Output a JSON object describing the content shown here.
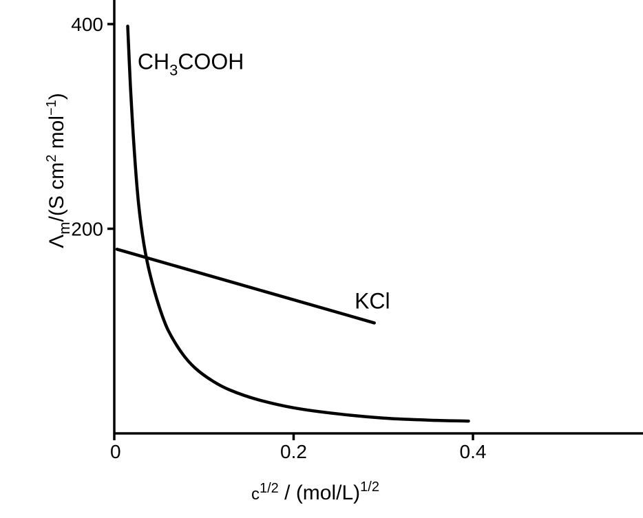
{
  "chart_data": {
    "type": "line",
    "title": "",
    "xlabel": "c¹ᐟ² / (mol/L)¹ᐟ²",
    "xlabel_parts": {
      "base": "c",
      "sup1": "1/2",
      "mid": " / (mol/L)",
      "sup2": "1/2"
    },
    "ylabel": "Λm /(S cm² mol⁻¹)",
    "ylabel_parts": {
      "sym": "Λ",
      "sub": "m",
      "pre": "/(S cm",
      "sup1": "2",
      "mid": " mol",
      "sup2": "−1",
      "post": ")"
    },
    "xlim": [
      0,
      0.5
    ],
    "ylim": [
      0,
      400
    ],
    "x_ticks": [
      {
        "value": 0,
        "label": "0"
      },
      {
        "value": 0.2,
        "label": "0.2"
      },
      {
        "value": 0.4,
        "label": "0.4"
      }
    ],
    "y_ticks": [
      {
        "value": 200,
        "label": "200"
      },
      {
        "value": 400,
        "label": "400"
      }
    ],
    "grid": false,
    "series": [
      {
        "name": "CH3COOH",
        "label_parts": {
          "pre": "CH",
          "sub": "3",
          "post": "COOH"
        },
        "label_at": {
          "x": 0.026,
          "y": 356
        },
        "x": [
          0.015,
          0.018,
          0.022,
          0.027,
          0.033,
          0.04,
          0.05,
          0.06,
          0.075,
          0.09,
          0.11,
          0.13,
          0.16,
          0.2,
          0.25,
          0.3,
          0.35,
          0.395
        ],
        "y": [
          398,
          340,
          280,
          225,
          185,
          155,
          124,
          101,
          79,
          64,
          51,
          42,
          33,
          25,
          19,
          15,
          13,
          12
        ]
      },
      {
        "name": "KCl",
        "label_parts": {
          "pre": "KCl",
          "sub": "",
          "post": ""
        },
        "label_at": {
          "x": 0.268,
          "y": 122
        },
        "x": [
          0.003,
          0.29
        ],
        "y": [
          180,
          108
        ]
      }
    ]
  }
}
